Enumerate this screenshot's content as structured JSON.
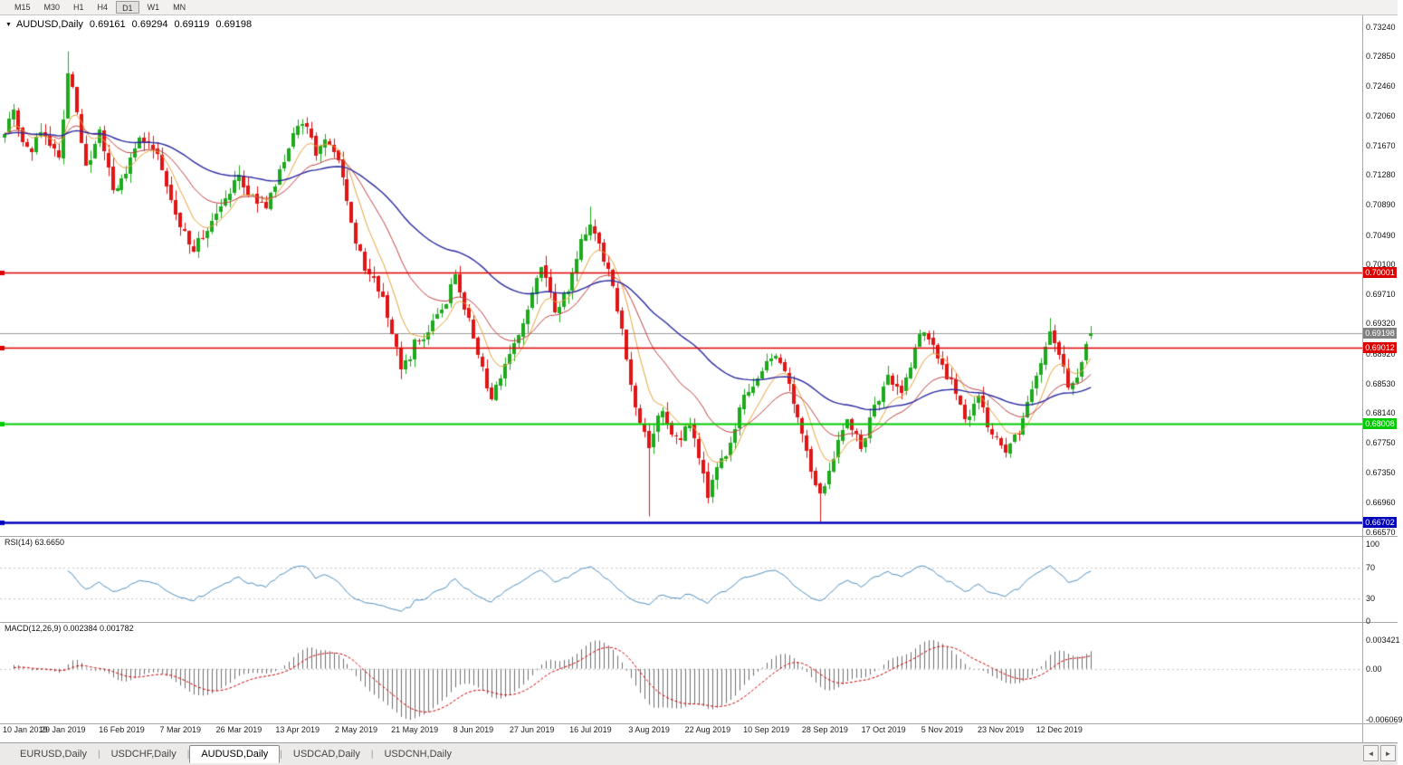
{
  "toolbar": {
    "timeframes": [
      "M15",
      "M30",
      "H1",
      "H4",
      "D1",
      "W1",
      "MN"
    ],
    "active_timeframe": "D1"
  },
  "chart": {
    "symbol_label": "AUDUSD,Daily",
    "ohlc": {
      "open": "0.69161",
      "high": "0.69294",
      "low": "0.69119",
      "close": "0.69198"
    }
  },
  "icons": {
    "dropdown": "▼",
    "scroll_left": "◄",
    "scroll_right": "►"
  },
  "axes": {
    "y_ticks": [
      "0.73240",
      "0.72850",
      "0.72460",
      "0.72060",
      "0.71670",
      "0.71280",
      "0.70890",
      "0.70490",
      "0.70100",
      "0.69710",
      "0.69320",
      "0.68920",
      "0.68530",
      "0.68140",
      "0.67750",
      "0.67350",
      "0.66960",
      "0.66570"
    ],
    "x_labels": [
      "10 Jan 2019",
      "29 Jan 2019",
      "16 Feb 2019",
      "7 Mar 2019",
      "26 Mar 2019",
      "13 Apr 2019",
      "2 May 2019",
      "21 May 2019",
      "8 Jun 2019",
      "27 Jun 2019",
      "16 Jul 2019",
      "3 Aug 2019",
      "22 Aug 2019",
      "10 Sep 2019",
      "28 Sep 2019",
      "17 Oct 2019",
      "5 Nov 2019",
      "23 Nov 2019",
      "12 Dec 2019"
    ]
  },
  "rsi_panel": {
    "label": "RSI(14) 63.6650",
    "ticks": [
      {
        "text": "100",
        "value": 100
      },
      {
        "text": "70",
        "value": 70
      },
      {
        "text": "30",
        "value": 30
      },
      {
        "text": "0",
        "value": 0
      }
    ]
  },
  "macd_panel": {
    "label": "MACD(12,26,9) 0.002384 0.001782",
    "ticks": [
      {
        "text": "0.003421",
        "value": 0.003421
      },
      {
        "text": "0.00",
        "value": 0
      },
      {
        "text": "-0.006069",
        "value": -0.006069
      }
    ]
  },
  "tabs": {
    "items": [
      "EURUSD,Daily",
      "USDCHF,Daily",
      "AUDUSD,Daily",
      "USDCAD,Daily",
      "USDCNH,Daily"
    ],
    "active_index": 2
  },
  "chart_data": {
    "type": "candlestick",
    "symbol": "AUDUSD",
    "timeframe": "Daily",
    "title": "AUDUSD,Daily",
    "last_ohlc": {
      "o": 0.69161,
      "h": 0.69294,
      "l": 0.69119,
      "c": 0.69198
    },
    "y_range": {
      "max": 0.7324,
      "min": 0.6657
    },
    "candles": {
      "count": 242,
      "seed": 20191219,
      "anchors": [
        [
          0,
          0.719
        ],
        [
          2,
          0.721
        ],
        [
          5,
          0.716
        ],
        [
          9,
          0.7185
        ],
        [
          12,
          0.715
        ],
        [
          14,
          0.7268
        ],
        [
          16,
          0.721
        ],
        [
          18,
          0.7135
        ],
        [
          21,
          0.7185
        ],
        [
          24,
          0.711
        ],
        [
          27,
          0.713
        ],
        [
          30,
          0.718
        ],
        [
          33,
          0.7165
        ],
        [
          36,
          0.712
        ],
        [
          39,
          0.7065
        ],
        [
          42,
          0.703
        ],
        [
          45,
          0.706
        ],
        [
          49,
          0.7095
        ],
        [
          52,
          0.7125
        ],
        [
          55,
          0.71
        ],
        [
          58,
          0.7085
        ],
        [
          61,
          0.7135
        ],
        [
          64,
          0.718
        ],
        [
          66,
          0.72
        ],
        [
          69,
          0.716
        ],
        [
          72,
          0.7175
        ],
        [
          75,
          0.7125
        ],
        [
          77,
          0.706
        ],
        [
          80,
          0.701
        ],
        [
          83,
          0.698
        ],
        [
          86,
          0.6925
        ],
        [
          88,
          0.6868
        ],
        [
          91,
          0.6905
        ],
        [
          95,
          0.693
        ],
        [
          98,
          0.6965
        ],
        [
          100,
          0.6992
        ],
        [
          103,
          0.694
        ],
        [
          106,
          0.687
        ],
        [
          108,
          0.6835
        ],
        [
          111,
          0.688
        ],
        [
          114,
          0.692
        ],
        [
          117,
          0.6975
        ],
        [
          119,
          0.7005
        ],
        [
          122,
          0.695
        ],
        [
          125,
          0.6975
        ],
        [
          128,
          0.704
        ],
        [
          130,
          0.707
        ],
        [
          132,
          0.7045
        ],
        [
          135,
          0.6975
        ],
        [
          137,
          0.692
        ],
        [
          139,
          0.6855
        ],
        [
          141,
          0.68
        ],
        [
          143,
          0.6775
        ],
        [
          146,
          0.682
        ],
        [
          149,
          0.678
        ],
        [
          152,
          0.6795
        ],
        [
          154,
          0.6755
        ],
        [
          156,
          0.6705
        ],
        [
          158,
          0.6745
        ],
        [
          161,
          0.6775
        ],
        [
          164,
          0.6835
        ],
        [
          168,
          0.6875
        ],
        [
          171,
          0.6893
        ],
        [
          174,
          0.6855
        ],
        [
          177,
          0.679
        ],
        [
          179,
          0.6735
        ],
        [
          181,
          0.6705
        ],
        [
          184,
          0.676
        ],
        [
          187,
          0.6805
        ],
        [
          190,
          0.677
        ],
        [
          193,
          0.682
        ],
        [
          196,
          0.6865
        ],
        [
          199,
          0.6845
        ],
        [
          202,
          0.69
        ],
        [
          204,
          0.6925
        ],
        [
          207,
          0.689
        ],
        [
          210,
          0.6855
        ],
        [
          213,
          0.6805
        ],
        [
          216,
          0.683
        ],
        [
          219,
          0.6785
        ],
        [
          222,
          0.6757
        ],
        [
          225,
          0.679
        ],
        [
          228,
          0.6845
        ],
        [
          230,
          0.688
        ],
        [
          232,
          0.6925
        ],
        [
          234,
          0.6895
        ],
        [
          236,
          0.6852
        ],
        [
          238,
          0.6862
        ],
        [
          240,
          0.69
        ],
        [
          241,
          0.692
        ]
      ],
      "wick_overrides": [
        {
          "i": 14,
          "high": 0.7292
        },
        {
          "i": 100,
          "high": 0.7004
        },
        {
          "i": 130,
          "high": 0.7087
        },
        {
          "i": 143,
          "low": 0.6678
        },
        {
          "i": 181,
          "low": 0.6671
        },
        {
          "i": 232,
          "high": 0.694
        }
      ],
      "last": {
        "o": 0.69161,
        "h": 0.69294,
        "l": 0.69119,
        "c": 0.69198
      }
    },
    "levels": [
      {
        "label": "0.70001",
        "value": 0.70001,
        "color": "#dd0000",
        "width": 1.6
      },
      {
        "label": "0.69012",
        "value": 0.69012,
        "color": "#dd0000",
        "width": 1.6
      },
      {
        "label": "0.68008",
        "value": 0.68008,
        "color": "#00cc00",
        "width": 2
      },
      {
        "label": "0.66702",
        "value": 0.66702,
        "color": "#0000bb",
        "width": 2.6
      }
    ],
    "current_price": {
      "label": "0.69198",
      "value": 0.69198,
      "color": "#808080",
      "line_color": "#9a9a9a"
    },
    "indicators": {
      "moving_averages": [
        {
          "period": 8,
          "color": "#e8a33d"
        },
        {
          "period": 21,
          "color": "#c04040"
        },
        {
          "period": 55,
          "color": "#2a2aa0"
        }
      ],
      "rsi": {
        "period": 14,
        "last_value": 63.665,
        "color": "#4f8fc0",
        "levels": [
          70,
          30
        ]
      },
      "macd": {
        "fast": 12,
        "slow": 26,
        "signal": 9,
        "macd_last": 0.002384,
        "signal_last": 0.001782,
        "hist_color": "#707070",
        "signal_color": "#cc0000",
        "scale_max": 0.003421,
        "scale_min": -0.006069
      }
    },
    "colors": {
      "bull": "#1daa1d",
      "bear": "#e01515",
      "background": "#ffffff"
    }
  }
}
